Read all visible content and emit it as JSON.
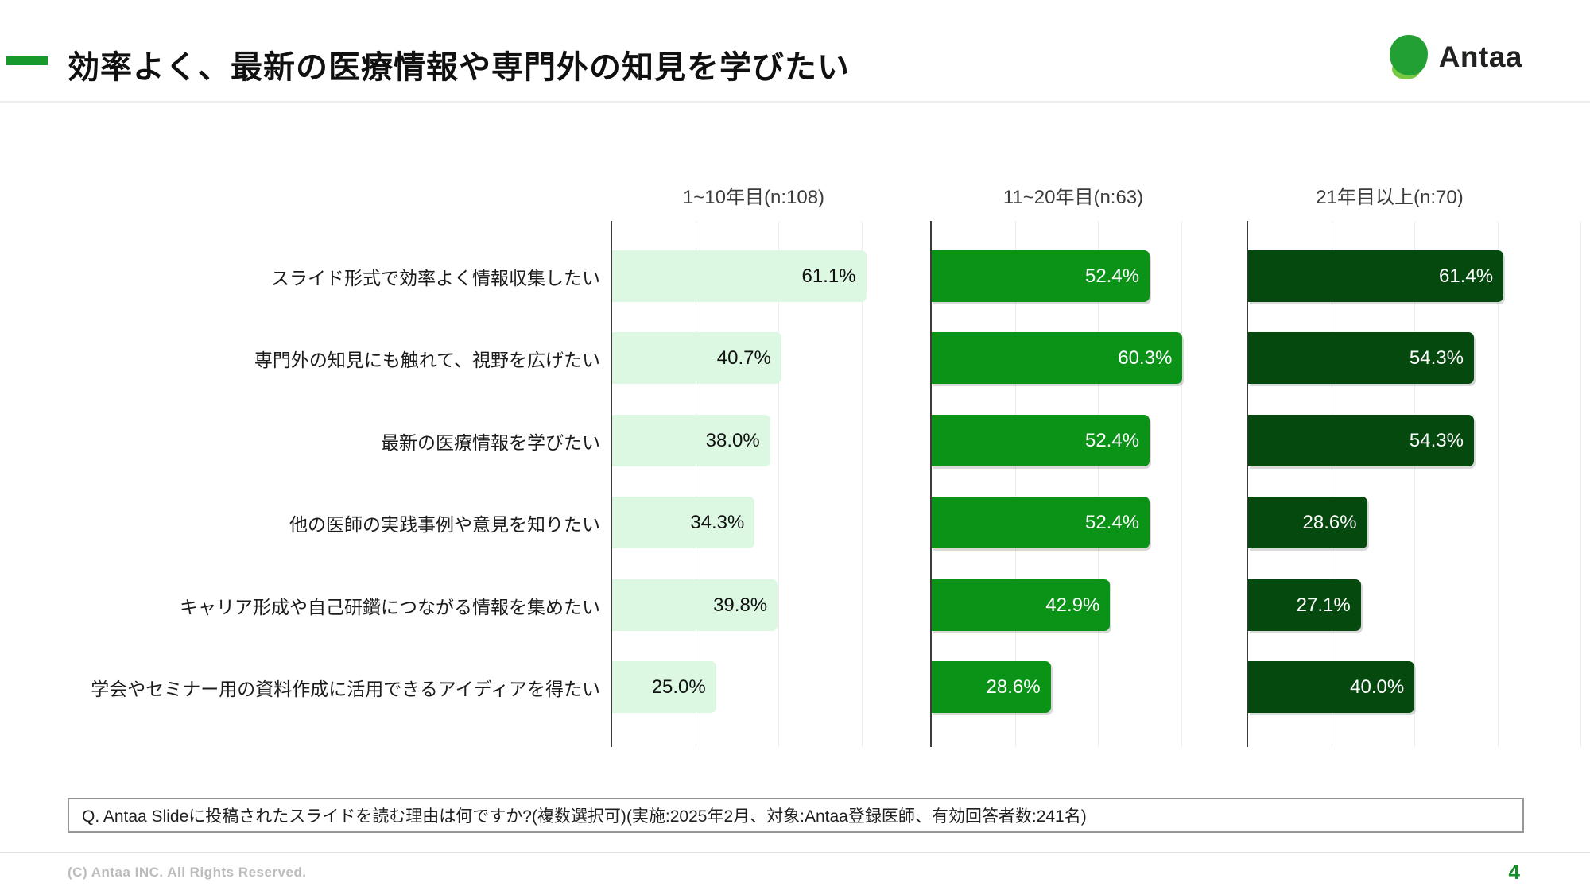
{
  "header": {
    "title": "効率よく、最新の医療情報や専門外の知見を学びたい",
    "logo_text": "Antaa"
  },
  "chart_data": {
    "type": "bar",
    "orientation": "horizontal",
    "title": "",
    "categories": [
      "スライド形式で効率よく情報収集したい",
      "専門外の知見にも触れて、視野を広げたい",
      "最新の医療情報を学びたい",
      "他の医師の実践事例や意見を知りたい",
      "キャリア形成や自己研鑽につながる情報を集めたい",
      "学会やセミナー用の資料作成に活用できるアイディアを得たい"
    ],
    "series": [
      {
        "name": "1~10年目(n:108)",
        "values": [
          61.1,
          40.7,
          38.0,
          34.3,
          39.8,
          25.0
        ],
        "labels": [
          "61.1%",
          "40.7%",
          "38.0%",
          "34.3%",
          "39.8%",
          "25.0%"
        ],
        "bar_color": "#dcf8e3",
        "label_color": "#111111"
      },
      {
        "name": "11~20年目(n:63)",
        "values": [
          52.4,
          60.3,
          52.4,
          52.4,
          42.9,
          28.6
        ],
        "labels": [
          "52.4%",
          "60.3%",
          "52.4%",
          "52.4%",
          "42.9%",
          "28.6%"
        ],
        "bar_color": "#0b9318",
        "label_color": "#ffffff"
      },
      {
        "name": "21年目以上(n:70)",
        "values": [
          61.4,
          54.3,
          54.3,
          28.6,
          27.1,
          40.0
        ],
        "labels": [
          "61.4%",
          "54.3%",
          "54.3%",
          "28.6%",
          "27.1%",
          "40.0%"
        ],
        "bar_color": "#06490f",
        "label_color": "#ffffff"
      }
    ],
    "value_suffix": "%",
    "xlim": [
      0,
      77
    ],
    "gridline_step": 20,
    "grid": true,
    "legend_position": "column-headers-top"
  },
  "question_box": {
    "text": "Q. Antaa Slideに投稿されたスライドを読む理由は何ですか?(複数選択可)(実施:2025年2月、対象:Antaa登録医師、有効回答者数:241名)"
  },
  "footer": {
    "copyright": "(C) Antaa INC. All Rights Reserved.",
    "page_number": "4"
  },
  "colors": {
    "accent_green": "#17992b",
    "light_bar": "#dcf8e3",
    "mid_bar": "#0b9318",
    "dark_bar": "#06490f",
    "axis": "#3b3b3b",
    "gridline": "#ececec",
    "page_number_green": "#158a2d"
  }
}
